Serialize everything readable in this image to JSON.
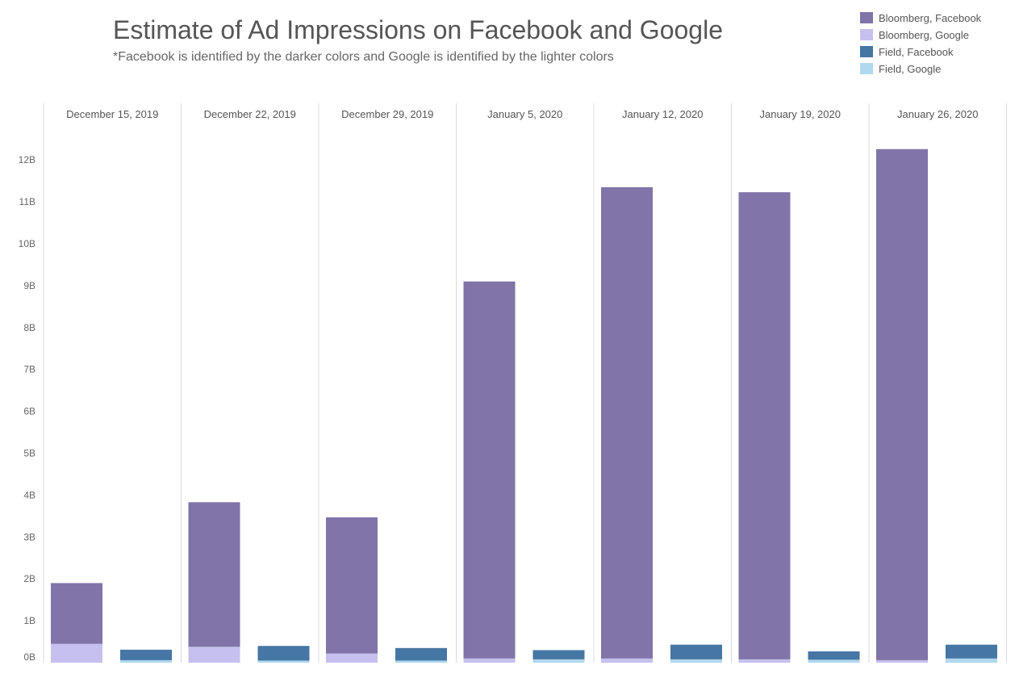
{
  "chart_data": {
    "type": "bar",
    "title": "Estimate of Ad Impressions on Facebook and Google",
    "subtitle": "*Facebook is identified by the darker colors and Google is identified by the lighter colors",
    "xlabel": "",
    "ylabel": "",
    "ylim": [
      0,
      13.5
    ],
    "y_unit": "B",
    "y_ticks": [
      {
        "value": 0,
        "label": "0B"
      },
      {
        "value": 1,
        "label": "1B"
      },
      {
        "value": 2,
        "label": "2B"
      },
      {
        "value": 3,
        "label": "3B"
      },
      {
        "value": 4,
        "label": "4B"
      },
      {
        "value": 5,
        "label": "5B"
      },
      {
        "value": 6,
        "label": "6B"
      },
      {
        "value": 7,
        "label": "7B"
      },
      {
        "value": 8,
        "label": "8B"
      },
      {
        "value": 9,
        "label": "9B"
      },
      {
        "value": 10,
        "label": "10B"
      },
      {
        "value": 11,
        "label": "11B"
      },
      {
        "value": 12,
        "label": "12B"
      }
    ],
    "categories": [
      "December 15, 2019",
      "December 22, 2019",
      "December 29, 2019",
      "January 5, 2020",
      "January 12, 2020",
      "January 19, 2020",
      "January 26, 2020"
    ],
    "groups": [
      "Bloomberg",
      "Field"
    ],
    "series": [
      {
        "name": "Bloomberg, Facebook",
        "group": "Bloomberg",
        "color": "#8074a8",
        "values": [
          1.45,
          3.45,
          3.25,
          9.0,
          11.25,
          11.15,
          12.2
        ]
      },
      {
        "name": "Bloomberg, Google",
        "group": "Bloomberg",
        "color": "#c6c0ee",
        "values": [
          0.45,
          0.38,
          0.22,
          0.1,
          0.1,
          0.08,
          0.06
        ]
      },
      {
        "name": "Field, Facebook",
        "group": "Field",
        "color": "#4676a4",
        "values": [
          0.25,
          0.35,
          0.3,
          0.22,
          0.35,
          0.2,
          0.33
        ]
      },
      {
        "name": "Field, Google",
        "group": "Field",
        "color": "#b0d8ee",
        "values": [
          0.06,
          0.05,
          0.05,
          0.08,
          0.08,
          0.07,
          0.1
        ]
      }
    ],
    "legend": {
      "position": "top-right"
    },
    "grid": false
  }
}
